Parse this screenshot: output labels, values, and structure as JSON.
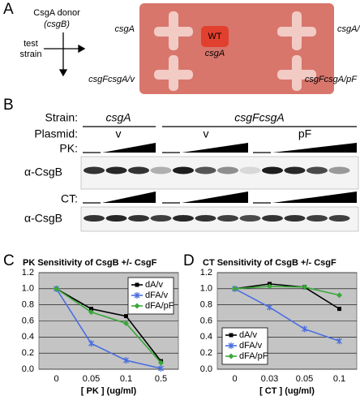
{
  "panel_a": {
    "label": "A",
    "donor": "CsgA donor",
    "donor_gene": "(csgB)",
    "test_strain": [
      "test",
      "strain"
    ],
    "plate_labels": [
      "csgA",
      "csgA/v",
      "WT",
      "csgA",
      "csgFcsgA/v",
      "csgFcsgA/pF"
    ]
  },
  "panel_b": {
    "label": "B",
    "strain_label": "Strain:",
    "strains": [
      "csgA",
      "csgFcsgA"
    ],
    "plasmid_label": "Plasmid:",
    "plasmids": [
      "v",
      "v",
      "pF"
    ],
    "pk_label": "PK:",
    "ct_label": "CT:",
    "antibody": [
      "α-CsgB",
      "α-CsgB"
    ]
  },
  "chart_data": [
    {
      "type": "line",
      "panel": "C",
      "title": "PK Sensitivity of CsgB +/- CsgF",
      "x_label": "[ PK ] (ug/ml)",
      "categories": [
        "0",
        "0.05",
        "0.1",
        "0.5"
      ],
      "series": [
        {
          "name": "dA/v",
          "color": "#000000",
          "values": [
            1.0,
            0.75,
            0.66,
            0.1
          ]
        },
        {
          "name": "dFA/v",
          "color": "#4a6ee0",
          "values": [
            1.0,
            0.32,
            0.11,
            0.01
          ]
        },
        {
          "name": "dFA/pF",
          "color": "#3aa83a",
          "values": [
            1.0,
            0.71,
            0.57,
            0.08
          ]
        }
      ],
      "ylim": [
        0,
        1.2
      ],
      "yticks": [
        {
          "value": 0,
          "label": "0.0"
        },
        0.2,
        0.4,
        0.6,
        0.8,
        {
          "value": 1,
          "label": "1.0"
        },
        1.2
      ],
      "grid": true,
      "legend": "upper right"
    },
    {
      "type": "line",
      "panel": "D",
      "title": "CT Sensitivity of CsgB +/- CsgF",
      "x_label": "[ CT ] (ug/ml)",
      "categories": [
        "0",
        "0.03",
        "0.05",
        "0.1"
      ],
      "series": [
        {
          "name": "dA/v",
          "color": "#000000",
          "values": [
            1.0,
            1.06,
            1.02,
            0.75
          ]
        },
        {
          "name": "dFA/v",
          "color": "#4a6ee0",
          "values": [
            1.0,
            0.77,
            0.5,
            0.35
          ]
        },
        {
          "name": "dFA/pF",
          "color": "#3aa83a",
          "values": [
            1.0,
            1.03,
            1.02,
            0.92
          ]
        }
      ],
      "ylim": [
        0,
        1.2
      ],
      "yticks": [
        {
          "value": 0,
          "label": "0.0"
        },
        0.2,
        0.4,
        0.6,
        0.8,
        {
          "value": 1,
          "label": "1.0"
        },
        1.2
      ],
      "grid": true,
      "legend": "lower left"
    }
  ]
}
